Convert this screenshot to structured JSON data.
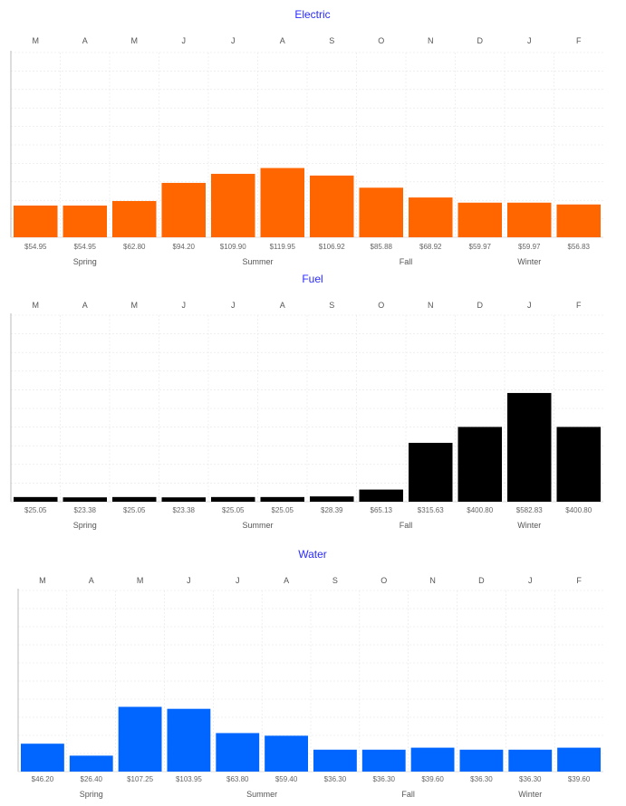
{
  "chart_data": [
    {
      "type": "bar",
      "title": "Electric",
      "categories": [
        "M",
        "A",
        "M",
        "J",
        "J",
        "A",
        "S",
        "O",
        "N",
        "D",
        "J",
        "F"
      ],
      "values": [
        54.95,
        54.95,
        62.8,
        94.2,
        109.9,
        119.95,
        106.92,
        85.88,
        68.92,
        59.97,
        59.97,
        56.83
      ],
      "value_labels": [
        "$54.95",
        "$54.95",
        "$62.80",
        "$94.20",
        "$109.90",
        "$119.95",
        "$106.92",
        "$85.88",
        "$68.92",
        "$59.97",
        "$59.97",
        "$56.83"
      ],
      "seasons": [
        {
          "label": "Spring",
          "center": 1
        },
        {
          "label": "Summer",
          "center": 4.5
        },
        {
          "label": "Fall",
          "center": 7.5
        },
        {
          "label": "Winter",
          "center": 10
        }
      ],
      "color": "#ff6600",
      "ylim": [
        0,
        320
      ],
      "grid": true
    },
    {
      "type": "bar",
      "title": "Fuel",
      "categories": [
        "M",
        "A",
        "M",
        "J",
        "J",
        "A",
        "S",
        "O",
        "N",
        "D",
        "J",
        "F"
      ],
      "values": [
        25.05,
        23.38,
        25.05,
        23.38,
        25.05,
        25.05,
        28.39,
        65.13,
        315.63,
        400.8,
        582.83,
        400.8
      ],
      "value_labels": [
        "$25.05",
        "$23.38",
        "$25.05",
        "$23.38",
        "$25.05",
        "$25.05",
        "$28.39",
        "$65.13",
        "$315.63",
        "$400.80",
        "$582.83",
        "$400.80"
      ],
      "seasons": [
        {
          "label": "Spring",
          "center": 1
        },
        {
          "label": "Summer",
          "center": 4.5
        },
        {
          "label": "Fall",
          "center": 7.5
        },
        {
          "label": "Winter",
          "center": 10
        }
      ],
      "color": "#000000",
      "ylim": [
        0,
        1000
      ],
      "grid": true
    },
    {
      "type": "bar",
      "title": "Water",
      "categories": [
        "M",
        "A",
        "M",
        "J",
        "J",
        "A",
        "S",
        "O",
        "N",
        "D",
        "J",
        "F"
      ],
      "values": [
        46.2,
        26.4,
        107.25,
        103.95,
        63.8,
        59.4,
        36.3,
        36.3,
        39.6,
        36.3,
        36.3,
        39.6
      ],
      "value_labels": [
        "$46.20",
        "$26.40",
        "$107.25",
        "$103.95",
        "$63.80",
        "$59.40",
        "$36.30",
        "$36.30",
        "$39.60",
        "$36.30",
        "$36.30",
        "$39.60"
      ],
      "seasons": [
        {
          "label": "Spring",
          "center": 1
        },
        {
          "label": "Summer",
          "center": 4.5
        },
        {
          "label": "Fall",
          "center": 7.5
        },
        {
          "label": "Winter",
          "center": 10
        }
      ],
      "color": "#0066ff",
      "ylim": [
        0,
        300
      ],
      "grid": true
    }
  ]
}
